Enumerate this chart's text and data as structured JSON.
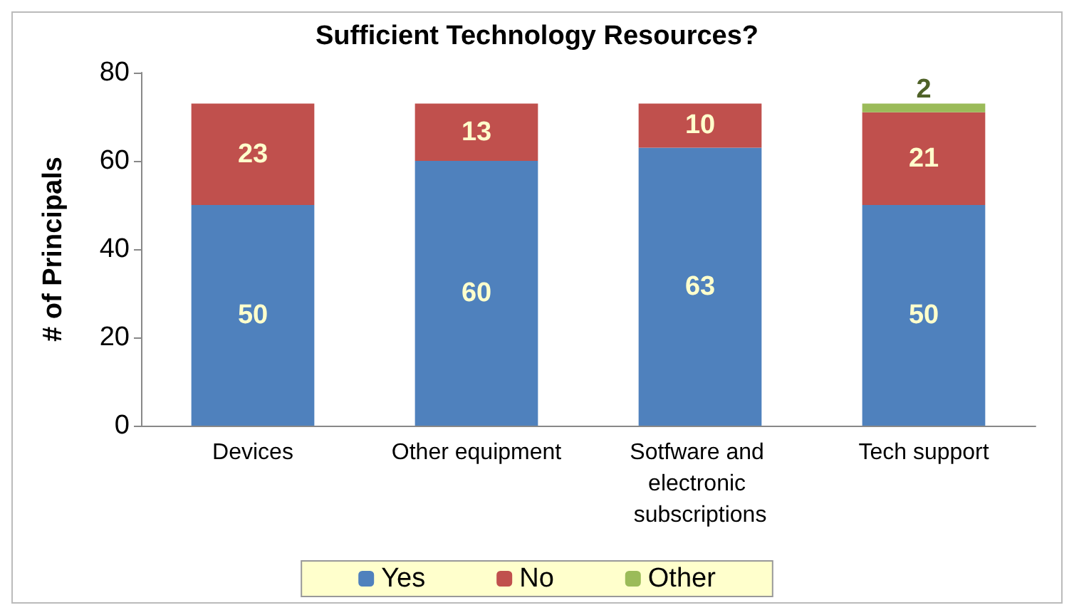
{
  "chart_data": {
    "type": "bar",
    "title": "Sufficient Technology Resources?",
    "ylabel": "# of Principals",
    "categories": [
      "Devices",
      "Other equipment",
      "Sotfware and electronic subscriptions",
      "Tech support"
    ],
    "series": [
      {
        "name": "Yes",
        "color": "#4f81bd",
        "values": [
          50,
          60,
          63,
          50
        ]
      },
      {
        "name": "No",
        "color": "#c0504d",
        "values": [
          23,
          13,
          10,
          21
        ]
      },
      {
        "name": "Other",
        "color": "#9bbb59",
        "values": [
          null,
          null,
          null,
          2
        ]
      }
    ],
    "stacked": true,
    "ylim": [
      0,
      80
    ],
    "yticks": [
      0,
      20,
      40,
      60,
      80
    ],
    "grid": false,
    "legend": "bottom",
    "data_labels": true
  }
}
